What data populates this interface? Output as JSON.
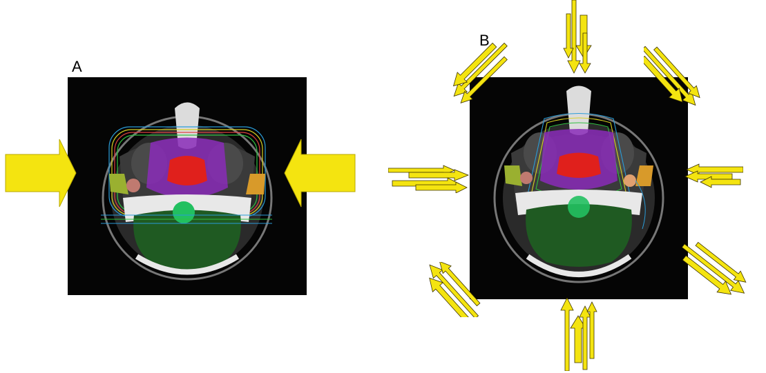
{
  "panels": [
    {
      "id": "A",
      "label": "A"
    },
    {
      "id": "B",
      "label": "B"
    }
  ],
  "colors": {
    "background": "#050505",
    "arrow_fill": "#f4e410",
    "arrow_stroke": "#3a3000",
    "target_core": "#e0201c",
    "target_outer": "#8a2bb8",
    "brainstem": "#22c060",
    "cerebellum": "#1f5a22",
    "parotid_left": "#9ab030",
    "parotid_right": "#d89a2a"
  },
  "icons": {
    "beam": "arrow-icon",
    "slice": "ct-axial-slice"
  }
}
